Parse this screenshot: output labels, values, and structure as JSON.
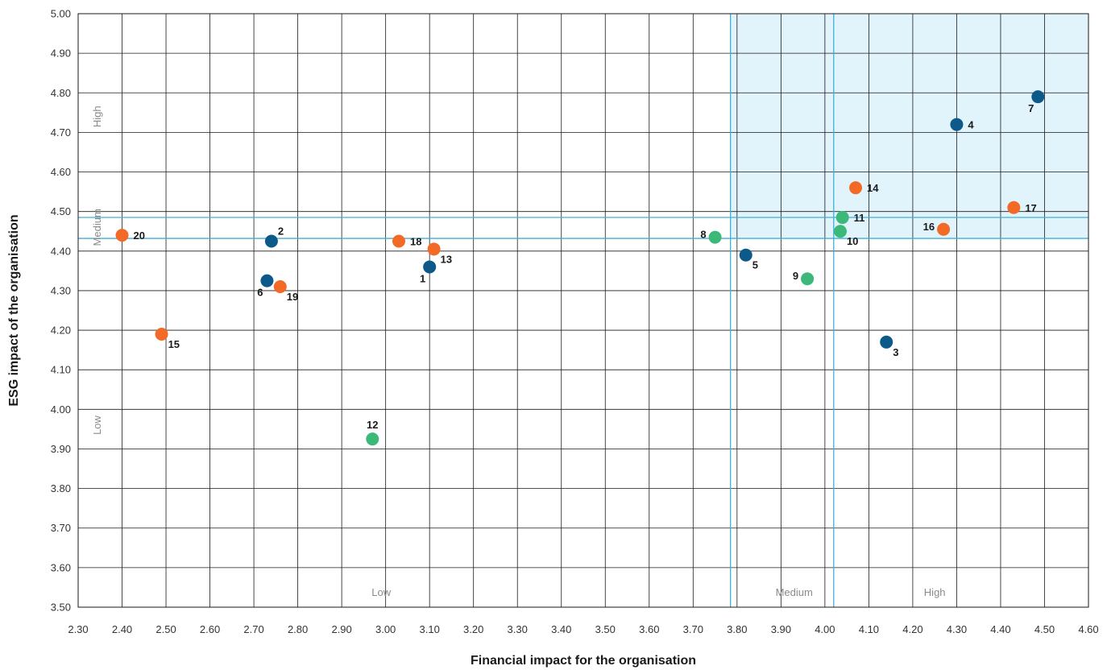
{
  "chart_data": {
    "type": "scatter",
    "xlabel": "Financial impact for the organisation",
    "ylabel": "ESG impact of the organisation",
    "xlim": [
      2.3,
      4.6
    ],
    "ylim": [
      3.5,
      5.0
    ],
    "x_ticks": [
      "2.30",
      "2.40",
      "2.50",
      "2.60",
      "2.70",
      "2.80",
      "2.90",
      "3.00",
      "3.10",
      "3.20",
      "3.30",
      "3.40",
      "3.50",
      "3.60",
      "3.70",
      "3.80",
      "3.90",
      "4.00",
      "4.10",
      "4.20",
      "4.30",
      "4.40",
      "4.50",
      "4.60"
    ],
    "y_ticks": [
      "5.00",
      "4.90",
      "4.80",
      "4.70",
      "4.60",
      "4.50",
      "4.40",
      "4.30",
      "4.20",
      "4.10",
      "4.00",
      "3.90",
      "3.80",
      "3.70",
      "3.60",
      "3.50"
    ],
    "grid": true,
    "thresholds": {
      "x": [
        3.785,
        4.02
      ],
      "y": [
        4.432,
        4.485
      ]
    },
    "highlight_region": {
      "x": [
        3.785,
        4.6
      ],
      "y": [
        4.432,
        5.0
      ],
      "color": "#e1f3fb"
    },
    "threshold_color": "#3fb0d6",
    "x_zone_labels": [
      {
        "text": "Low",
        "x": 2.99
      },
      {
        "text": "Medium",
        "x": 3.93
      },
      {
        "text": "High",
        "x": 4.25
      }
    ],
    "y_zone_labels": [
      {
        "text": "High",
        "y": 4.74
      },
      {
        "text": "Medium",
        "y": 4.46
      },
      {
        "text": "Low",
        "y": 3.96
      }
    ],
    "series": [
      {
        "color": "#0d5a8a",
        "points": [
          {
            "label": "1",
            "x": 3.1,
            "y": 4.36,
            "pos": "bl"
          },
          {
            "label": "2",
            "x": 2.74,
            "y": 4.425,
            "pos": "tr"
          },
          {
            "label": "3",
            "x": 4.14,
            "y": 4.17,
            "pos": "br"
          },
          {
            "label": "4",
            "x": 4.3,
            "y": 4.72,
            "pos": "r"
          },
          {
            "label": "5",
            "x": 3.82,
            "y": 4.39,
            "pos": "br"
          },
          {
            "label": "6",
            "x": 2.73,
            "y": 4.325,
            "pos": "bl"
          },
          {
            "label": "7",
            "x": 4.485,
            "y": 4.79,
            "pos": "bl"
          }
        ]
      },
      {
        "color": "#3cb878",
        "points": [
          {
            "label": "8",
            "x": 3.75,
            "y": 4.435,
            "pos": "l"
          },
          {
            "label": "9",
            "x": 3.96,
            "y": 4.33,
            "pos": "l"
          },
          {
            "label": "10",
            "x": 4.035,
            "y": 4.45,
            "pos": "br"
          },
          {
            "label": "11",
            "x": 4.04,
            "y": 4.485,
            "pos": "r"
          },
          {
            "label": "12",
            "x": 2.97,
            "y": 3.925,
            "pos": "t"
          }
        ]
      },
      {
        "color": "#f26a25",
        "points": [
          {
            "label": "13",
            "x": 3.11,
            "y": 4.405,
            "pos": "br"
          },
          {
            "label": "14",
            "x": 4.07,
            "y": 4.56,
            "pos": "r"
          },
          {
            "label": "15",
            "x": 2.49,
            "y": 4.19,
            "pos": "br"
          },
          {
            "label": "16",
            "x": 4.27,
            "y": 4.455,
            "pos": "l"
          },
          {
            "label": "17",
            "x": 4.43,
            "y": 4.51,
            "pos": "r"
          },
          {
            "label": "18",
            "x": 3.03,
            "y": 4.425,
            "pos": "r"
          },
          {
            "label": "19",
            "x": 2.76,
            "y": 4.31,
            "pos": "br"
          },
          {
            "label": "20",
            "x": 2.4,
            "y": 4.44,
            "pos": "r"
          }
        ]
      }
    ]
  }
}
